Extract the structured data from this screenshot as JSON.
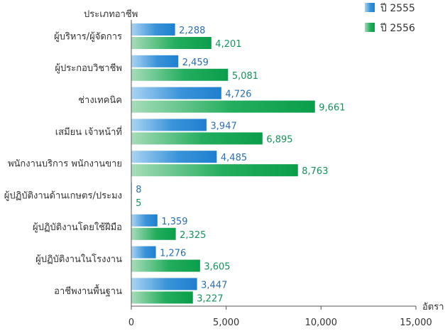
{
  "chart_data": {
    "type": "bar",
    "orientation": "horizontal",
    "ylabel": "ประเภทอาชีพ",
    "xlabel": "อัตรา",
    "xlim": [
      0,
      15000
    ],
    "xticks": [
      "0",
      "5,000",
      "10,000",
      "15,000"
    ],
    "xtick_values": [
      0,
      5000,
      10000,
      15000
    ],
    "grid": false,
    "legend_position": "top-right",
    "categories": [
      "ผู้บริหาร/ผู้จัดการ",
      "ผู้ประกอบวิชาชีพ",
      "ช่างเทคนิค",
      "เสมียน เจ้าหน้าที่",
      "พนักงานบริการ พนักงานขาย",
      "ผู้ปฏิบัติงานด้านเกษตร/ประมง",
      "ผู้ปฏิบัติงานโดยใช้ฝีมือ",
      "ผู้ปฏิบัติงานในโรงงาน",
      "อาชีพงานพื้นฐาน"
    ],
    "series": [
      {
        "name": "ปี 2555",
        "color": "#1f7fcf",
        "label_color": "#2a6fb4",
        "values": [
          2288,
          2459,
          4726,
          3947,
          4485,
          8,
          1359,
          1276,
          3447
        ],
        "labels": [
          "2,288",
          "2,459",
          "4,726",
          "3,947",
          "4,485",
          "8",
          "1,359",
          "1,276",
          "3,447"
        ]
      },
      {
        "name": "ปี 2556",
        "color": "#0a9e4a",
        "label_color": "#12945a",
        "values": [
          4201,
          5081,
          9661,
          6895,
          8763,
          5,
          2325,
          3605,
          3227
        ],
        "labels": [
          "4,201",
          "5,081",
          "9,661",
          "6,895",
          "8,763",
          "5",
          "2,325",
          "3,605",
          "3,227"
        ]
      }
    ]
  }
}
